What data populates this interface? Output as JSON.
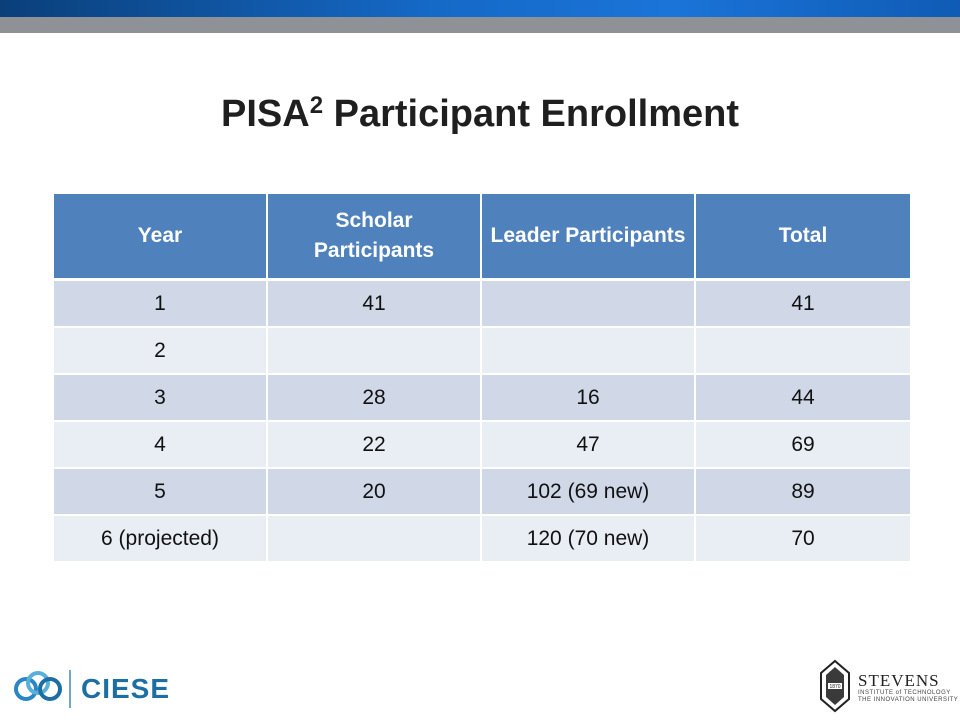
{
  "slide": {
    "title_main": "PISA",
    "title_sup": "2",
    "title_rest": "Participant Enrollment"
  },
  "table": {
    "headers": [
      "Year",
      "Scholar Participants",
      "Leader Participants",
      "Total"
    ],
    "rows": [
      [
        "1",
        "41",
        "",
        "41"
      ],
      [
        "2",
        "",
        "",
        ""
      ],
      [
        "3",
        "28",
        "16",
        "44"
      ],
      [
        "4",
        "22",
        "47",
        "69"
      ],
      [
        "5",
        "20",
        "102 (69 new)",
        "89"
      ],
      [
        "6 (projected)",
        "",
        "120 (70 new)",
        "70"
      ]
    ]
  },
  "footer": {
    "left_logo_text": "CIESE",
    "right_logo_name": "STEVENS",
    "right_logo_sub1": "INSTITUTE of TECHNOLOGY",
    "right_logo_sub2": "THE INNOVATION UNIVERSITY",
    "seal_year": "1870"
  },
  "colors": {
    "header_bg": "#4f81bd",
    "row_dark": "#d0d8e8",
    "row_light": "#e9edf4",
    "topbar_blue": "#1569c7",
    "topbar_gray": "#8e9296",
    "ciese_blue": "#1d6fa3"
  }
}
